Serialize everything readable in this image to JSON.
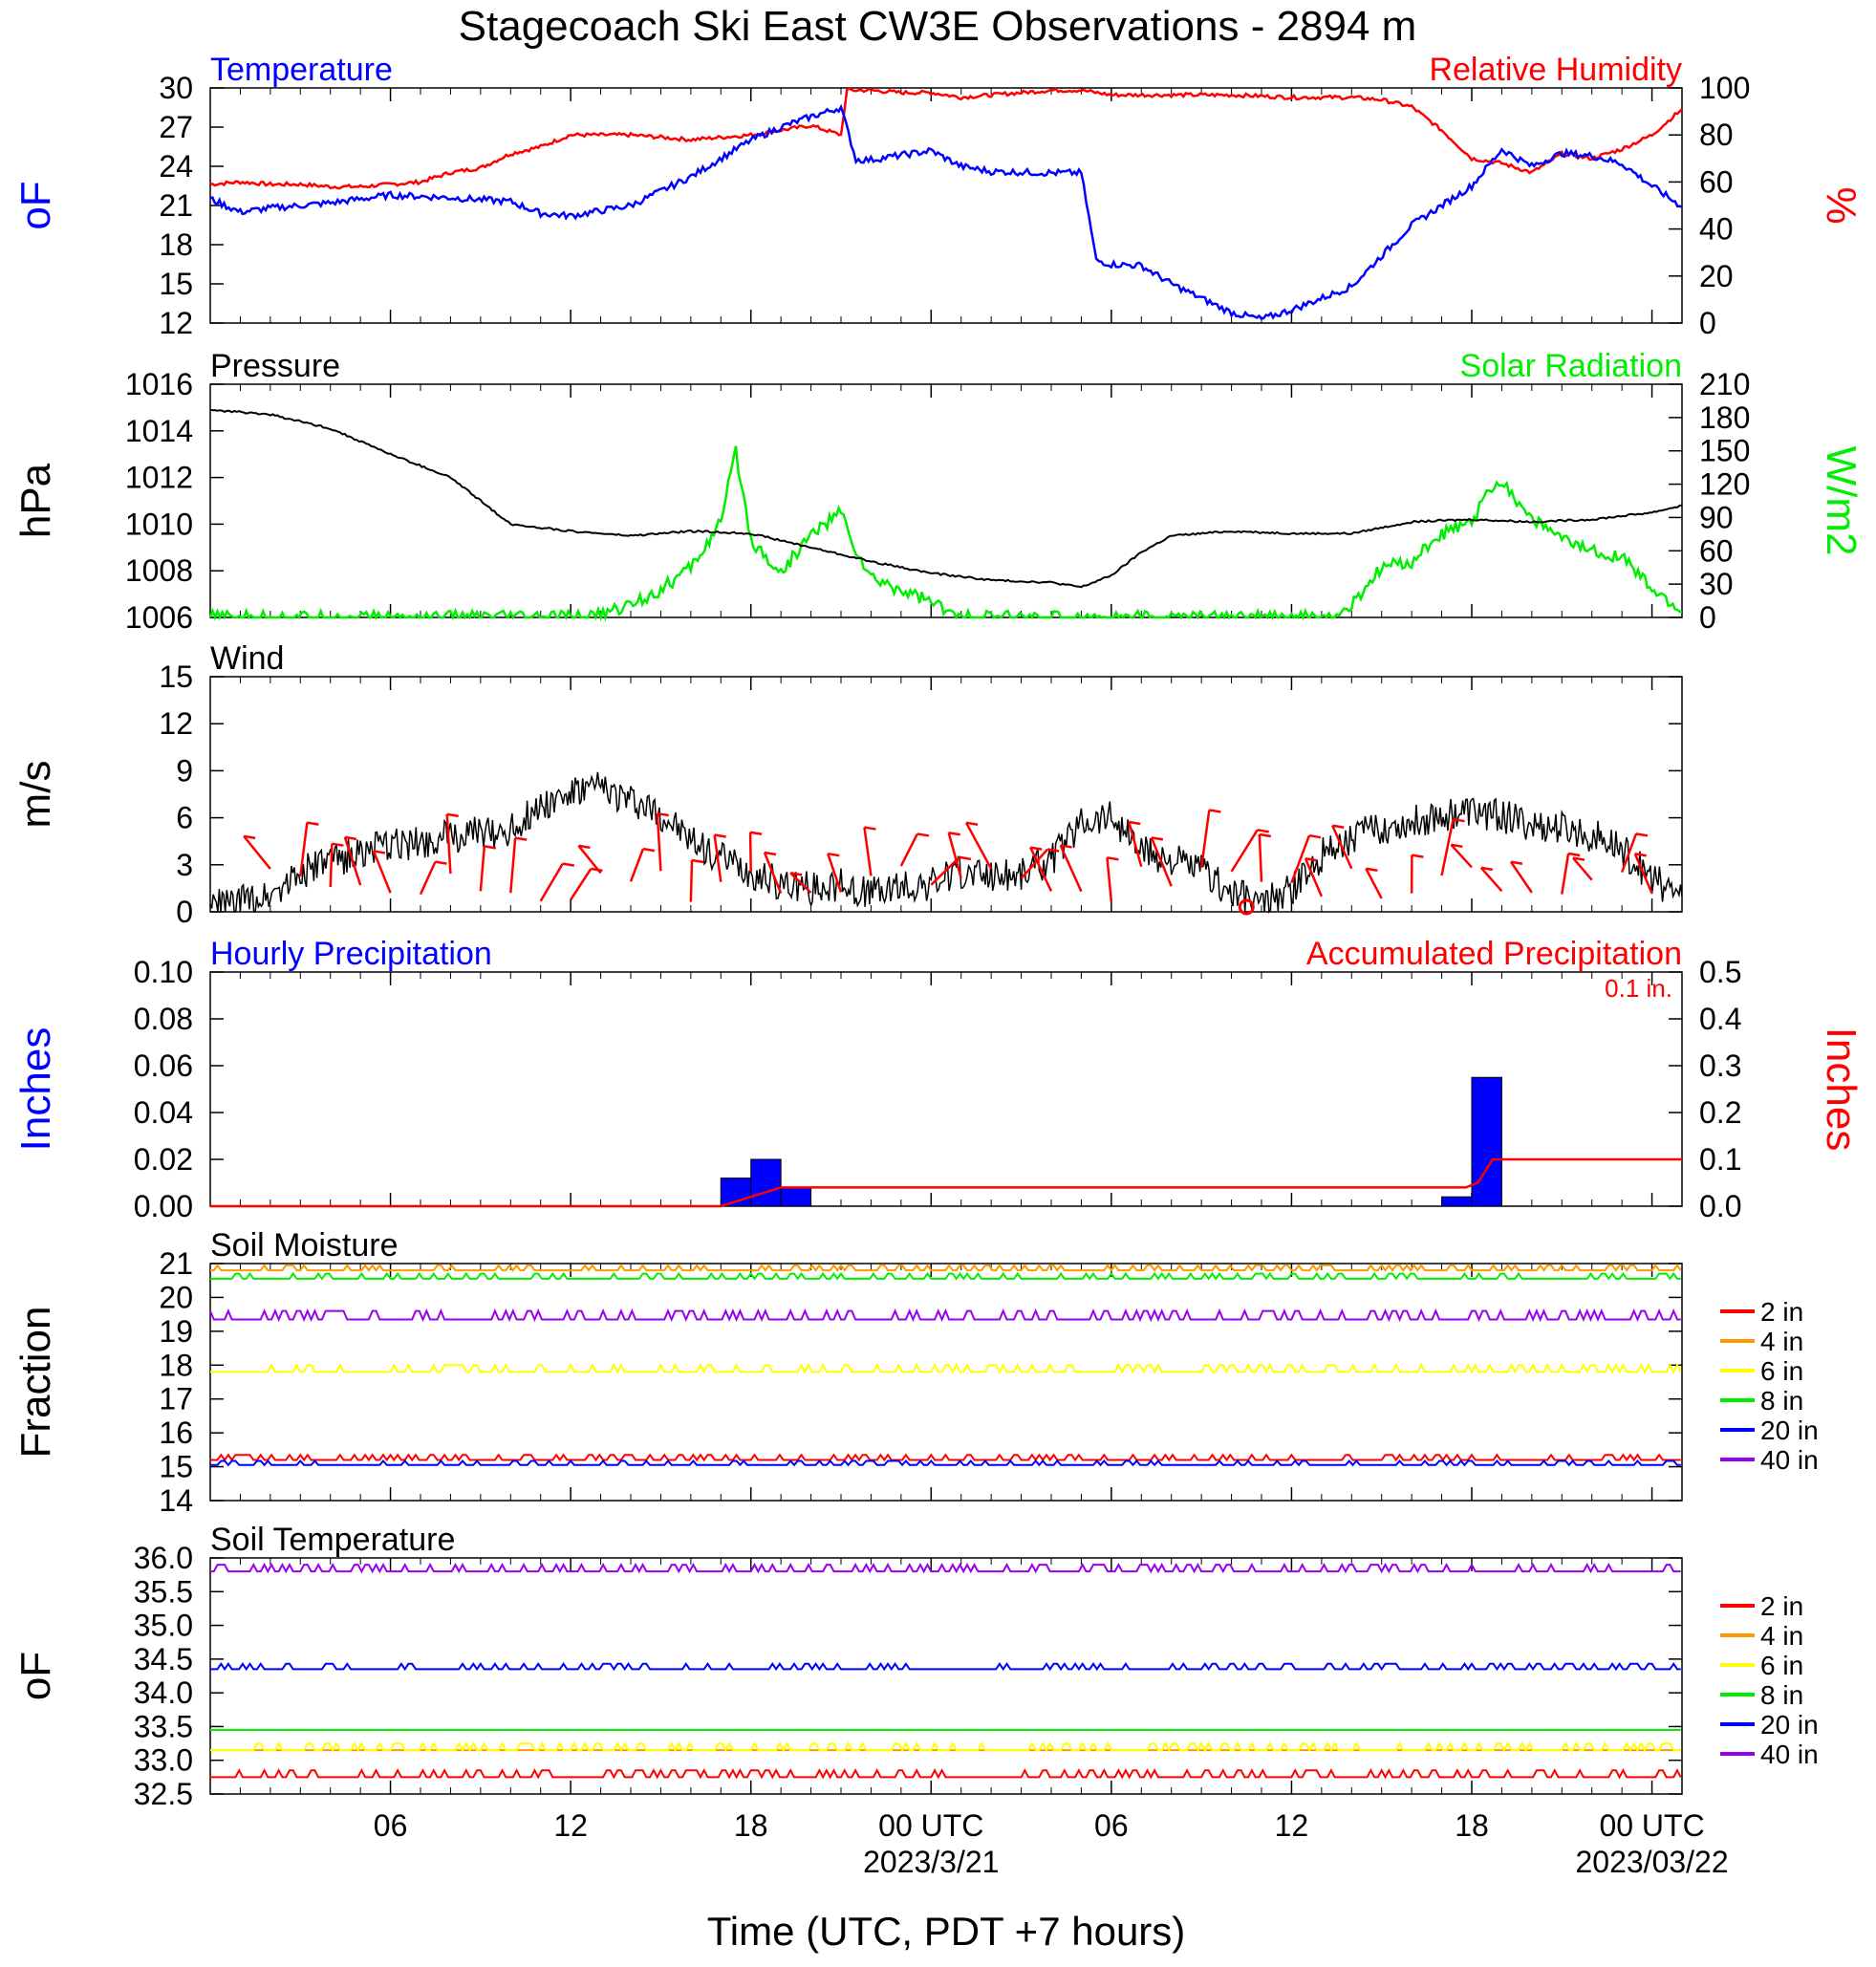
{
  "title": "Stagecoach Ski East CW3E Observations - 2894 m",
  "x_axis": {
    "label": "Time (UTC, PDT +7 hours)",
    "ticks": [
      {
        "hour": 6,
        "label": "06",
        "date": ""
      },
      {
        "hour": 12,
        "label": "12",
        "date": ""
      },
      {
        "hour": 18,
        "label": "18",
        "date": ""
      },
      {
        "hour": 24,
        "label": "00 UTC",
        "date": "2023/3/21"
      },
      {
        "hour": 30,
        "label": "06",
        "date": ""
      },
      {
        "hour": 36,
        "label": "12",
        "date": ""
      },
      {
        "hour": 42,
        "label": "18",
        "date": ""
      },
      {
        "hour": 48,
        "label": "00 UTC",
        "date": "2023/03/22"
      }
    ]
  },
  "colors": {
    "temperature": "#0000ff",
    "humidity": "#ff0000",
    "pressure": "#000000",
    "solar": "#00ee00",
    "wind": "#000000",
    "barb": "#ff0000",
    "precip_bar": "#0000ff",
    "precip_acc": "#ff0000"
  },
  "panels": {
    "temp_rh": {
      "left_title": "Temperature",
      "right_title": "Relative Humidity",
      "left_unit": "oF",
      "right_unit": "%"
    },
    "pressure_solar": {
      "left_title": "Pressure",
      "right_title": "Solar Radiation",
      "left_unit": "hPa",
      "right_unit": "W/m2"
    },
    "wind": {
      "left_title": "Wind",
      "left_unit": "m/s"
    },
    "precip": {
      "left_title": "Hourly Precipitation",
      "right_title": "Accumulated Precipitation",
      "total_note": "0.1 in.",
      "left_unit": "Inches",
      "right_unit": "Inches"
    },
    "soil_moisture": {
      "left_title": "Soil Moisture",
      "left_unit": "Fraction"
    },
    "soil_temp": {
      "left_title": "Soil Temperature",
      "left_unit": "oF"
    }
  },
  "chart_data": [
    {
      "type": "line",
      "title": "Temperature / Relative Humidity",
      "x_units": "hours from 2023-03-20 00 UTC",
      "xlim": [
        0,
        49
      ],
      "y_left": {
        "label": "oF",
        "lim": [
          12,
          30
        ],
        "ticks": [
          12,
          15,
          18,
          21,
          24,
          27,
          30
        ]
      },
      "y_right": {
        "label": "%",
        "lim": [
          0,
          100
        ],
        "ticks": [
          0,
          20,
          40,
          60,
          80,
          100
        ]
      },
      "series": [
        {
          "name": "Temperature",
          "axis": "left",
          "x": [
            0,
            1,
            2,
            4,
            6,
            8,
            10,
            11,
            12,
            14,
            16,
            18,
            19,
            20,
            21,
            21.5,
            22,
            24,
            25,
            26,
            28,
            29,
            29.5,
            30,
            31,
            32,
            34,
            35,
            36,
            38,
            40,
            42,
            43,
            44,
            45,
            46,
            47,
            48,
            49
          ],
          "y": [
            21.5,
            20.5,
            20.8,
            21.2,
            21.8,
            21.6,
            21.3,
            20.4,
            20.2,
            21,
            23.2,
            26,
            27,
            27.8,
            28.5,
            24.5,
            24.5,
            25.2,
            24,
            23.6,
            23.5,
            23.5,
            16.8,
            16.5,
            16.4,
            15,
            12.8,
            12.3,
            13,
            14.8,
            19.5,
            22.5,
            25.3,
            24,
            25,
            24.8,
            24.2,
            22.5,
            20.9
          ]
        },
        {
          "name": "Relative Humidity",
          "axis": "right",
          "x": [
            0,
            1,
            2,
            3,
            4,
            5,
            6,
            7,
            8,
            9,
            10,
            11,
            12,
            13,
            14,
            15,
            16,
            17,
            18,
            19,
            20,
            21,
            21.2,
            22,
            23,
            24,
            25,
            26,
            27,
            28,
            29,
            30,
            32,
            34,
            36,
            38,
            39,
            40,
            41,
            42,
            43,
            44,
            45,
            46,
            47,
            48,
            49
          ],
          "y": [
            59,
            60,
            59,
            59,
            58,
            58,
            59,
            60,
            64,
            66,
            72,
            75,
            80,
            80,
            80,
            79,
            78,
            79,
            80,
            82,
            84,
            80,
            99,
            99,
            98,
            98,
            96,
            97,
            98,
            99,
            99,
            97,
            97,
            97,
            96,
            96,
            95,
            92,
            82,
            70,
            68,
            64,
            72,
            70,
            74,
            80,
            91
          ]
        }
      ]
    },
    {
      "type": "line",
      "title": "Pressure / Solar Radiation",
      "x_units": "hours from 2023-03-20 00 UTC",
      "xlim": [
        0,
        49
      ],
      "y_left": {
        "label": "hPa",
        "lim": [
          1006,
          1016
        ],
        "ticks": [
          1006,
          1008,
          1010,
          1012,
          1014,
          1016
        ]
      },
      "y_right": {
        "label": "W/m2",
        "lim": [
          0,
          210
        ],
        "ticks": [
          0,
          30,
          60,
          90,
          120,
          150,
          180,
          210
        ]
      },
      "series": [
        {
          "name": "Pressure",
          "axis": "left",
          "x": [
            0,
            2,
            4,
            6,
            8,
            9,
            10,
            12,
            14,
            16,
            18,
            20,
            22,
            24,
            26,
            28,
            29,
            30,
            31,
            32,
            34,
            36,
            38,
            40,
            42,
            44,
            46,
            48,
            49
          ],
          "y": [
            1014.9,
            1014.7,
            1014.1,
            1013,
            1012,
            1011,
            1010,
            1009.7,
            1009.5,
            1009.7,
            1009.6,
            1009,
            1008.4,
            1007.9,
            1007.6,
            1007.5,
            1007.3,
            1007.8,
            1008.8,
            1009.5,
            1009.7,
            1009.6,
            1009.6,
            1010.1,
            1010.2,
            1010.1,
            1010.2,
            1010.5,
            1010.8
          ]
        },
        {
          "name": "Solar Radiation",
          "axis": "right",
          "x": [
            0,
            12,
            12.5,
            13,
            14,
            15,
            16,
            17,
            17.5,
            18,
            18.5,
            19,
            20,
            21,
            21.5,
            22,
            23,
            24,
            24.5,
            25,
            26,
            28,
            30,
            32,
            34,
            36,
            37,
            37.5,
            38,
            39,
            40,
            41,
            42,
            42.5,
            43,
            43.5,
            44,
            45,
            46,
            47,
            48,
            49
          ],
          "y": [
            0,
            0,
            0,
            2,
            12,
            25,
            45,
            85,
            150,
            70,
            55,
            40,
            75,
            95,
            60,
            35,
            25,
            15,
            5,
            0,
            0,
            0,
            0,
            0,
            0,
            0,
            0,
            0,
            10,
            45,
            50,
            75,
            85,
            110,
            125,
            105,
            90,
            70,
            60,
            55,
            25,
            5
          ]
        }
      ]
    },
    {
      "type": "line",
      "title": "Wind",
      "x_units": "hours from 2023-03-20 00 UTC",
      "xlim": [
        0,
        49
      ],
      "y_left": {
        "label": "m/s",
        "lim": [
          0,
          15
        ],
        "ticks": [
          0,
          3,
          6,
          9,
          12,
          15
        ]
      },
      "series": [
        {
          "name": "Wind",
          "axis": "left",
          "x": [
            0,
            1,
            2,
            3,
            4,
            5,
            6,
            7,
            8,
            9,
            10,
            11,
            12,
            13,
            14,
            15,
            16,
            17,
            18,
            19,
            20,
            21,
            22,
            23,
            24,
            25,
            26,
            27,
            28,
            29,
            30,
            31,
            32,
            33,
            34,
            35,
            36,
            37,
            38,
            39,
            40,
            41,
            42,
            43,
            44,
            45,
            46,
            47,
            48,
            49
          ],
          "y": [
            0.4,
            0.6,
            1.2,
            2.5,
            3.2,
            3.8,
            4.2,
            4.5,
            4.8,
            5,
            5.2,
            6.8,
            7.5,
            7.9,
            7.1,
            6.2,
            4.5,
            3.5,
            2.5,
            1.8,
            1.5,
            1.8,
            1.2,
            1.5,
            1.7,
            2.6,
            2.4,
            2.5,
            3.2,
            5.8,
            6.2,
            3.9,
            3.3,
            2.7,
            1.2,
            0.5,
            1.4,
            3.6,
            4.8,
            5.4,
            5.7,
            6.2,
            6.4,
            6.1,
            5.5,
            5.3,
            4.9,
            4,
            2.1,
            1
          ]
        }
      ]
    },
    {
      "type": "bar",
      "title": "Hourly / Accumulated Precipitation",
      "x_units": "hours from 2023-03-20 00 UTC",
      "xlim": [
        0,
        49
      ],
      "y_left": {
        "label": "Inches",
        "lim": [
          0,
          0.1
        ],
        "ticks": [
          0,
          0.02,
          0.04,
          0.06,
          0.08,
          0.1
        ]
      },
      "y_right": {
        "label": "Inches",
        "lim": [
          0,
          0.5
        ],
        "ticks": [
          0,
          0.1,
          0.2,
          0.3,
          0.4,
          0.5
        ]
      },
      "series": [
        {
          "name": "Hourly Precipitation",
          "axis": "left",
          "x": [
            17,
            18,
            19,
            41,
            42
          ],
          "y": [
            0.012,
            0.02,
            0.008,
            0.004,
            0.055
          ]
        },
        {
          "name": "Accumulated Precipitation",
          "axis": "right",
          "x": [
            0,
            17,
            17.5,
            18,
            18.5,
            19,
            20,
            41,
            41.8,
            42.2,
            42.7,
            49
          ],
          "y": [
            0,
            0,
            0.01,
            0.02,
            0.03,
            0.04,
            0.04,
            0.04,
            0.04,
            0.05,
            0.1,
            0.1
          ]
        }
      ]
    },
    {
      "type": "line",
      "title": "Soil Moisture",
      "x_units": "hours from 2023-03-20 00 UTC",
      "xlim": [
        0,
        49
      ],
      "y_left": {
        "label": "Fraction",
        "lim": [
          14,
          21
        ],
        "ticks": [
          14,
          15,
          16,
          17,
          18,
          19,
          20,
          21
        ]
      },
      "series": [
        {
          "name": "2 in",
          "constant": 15.2,
          "noise": 0.15
        },
        {
          "name": "4 in",
          "constant": 20.8,
          "noise": 0.15
        },
        {
          "name": "6 in",
          "constant": 17.8,
          "noise": 0.2
        },
        {
          "name": "8 in",
          "constant": 20.55,
          "noise": 0.15
        },
        {
          "name": "20 in",
          "constant": 15.05,
          "noise": 0.12
        },
        {
          "name": "40 in",
          "constant": 19.35,
          "noise": 0.25
        }
      ]
    },
    {
      "type": "line",
      "title": "Soil Temperature",
      "x_units": "hours from 2023-03-20 00 UTC",
      "xlim": [
        0,
        49
      ],
      "y_left": {
        "label": "oF",
        "lim": [
          32.5,
          36
        ],
        "ticks": [
          32.5,
          33.0,
          33.5,
          34.0,
          34.5,
          35.0,
          35.5,
          36.0
        ]
      },
      "series": [
        {
          "name": "2 in",
          "constant": 32.75,
          "noise": 0.1
        },
        {
          "name": "4 in",
          "constant": 33.15,
          "noise": 0.0
        },
        {
          "name": "6 in",
          "constant": 33.15,
          "noise": 0.1
        },
        {
          "name": "8 in",
          "constant": 33.45,
          "noise": 0.0
        },
        {
          "name": "20 in",
          "constant": 34.35,
          "noise": 0.08
        },
        {
          "name": "40 in",
          "constant": 35.8,
          "noise": 0.1
        }
      ]
    }
  ],
  "legend": {
    "soil_items": [
      {
        "label": "2 in",
        "color": "#ff0000"
      },
      {
        "label": "4 in",
        "color": "#ff9900"
      },
      {
        "label": "6 in",
        "color": "#ffff00"
      },
      {
        "label": "8 in",
        "color": "#00ee00"
      },
      {
        "label": "20 in",
        "color": "#0000ff"
      },
      {
        "label": "40 in",
        "color": "#9900ee"
      }
    ]
  }
}
